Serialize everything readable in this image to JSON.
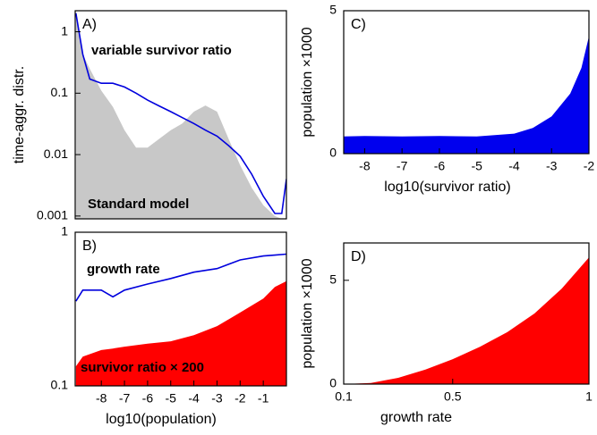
{
  "chart_data": [
    {
      "type": "area",
      "label": "A)",
      "ylabel": "time-aggr. distr.",
      "log_y": true,
      "xlim": [
        -9.13,
        0
      ],
      "ylim": [
        0.0009,
        2.2
      ],
      "yticks": [
        1,
        0.1,
        0.01,
        0.001
      ],
      "x": [
        -9.1,
        -8.8,
        -8.5,
        -8,
        -7.5,
        -7,
        -6.5,
        -6,
        -5.5,
        -5,
        -4.5,
        -4,
        -3.5,
        -3,
        -2.5,
        -2,
        -1.5,
        -1,
        -0.5,
        -0.2,
        0
      ],
      "series": [
        {
          "name": "Standard model",
          "type": "area",
          "color": "#c8c8c8",
          "values": [
            2,
            0.43,
            0.25,
            0.11,
            0.06,
            0.025,
            0.013,
            0.013,
            0.018,
            0.025,
            0.032,
            0.05,
            0.063,
            0.05,
            0.018,
            0.0067,
            0.0029,
            0.0015,
            0.001,
            0.0009,
            0.0009
          ]
        },
        {
          "name": "variable survivor ratio",
          "type": "line",
          "color": "#0000dd",
          "values": [
            2,
            0.43,
            0.17,
            0.145,
            0.145,
            0.126,
            0.1,
            0.077,
            0.062,
            0.05,
            0.04,
            0.032,
            0.025,
            0.02,
            0.014,
            0.0094,
            0.0048,
            0.0021,
            0.0011,
            0.0011,
            0.004
          ]
        }
      ]
    },
    {
      "type": "area",
      "label": "B)",
      "xlabel": "log10(population)",
      "log_y": true,
      "xlim": [
        -9.13,
        0
      ],
      "ylim": [
        0.1,
        1
      ],
      "yticks": [
        1,
        0.1
      ],
      "xticks": [
        -8,
        -7,
        -6,
        -5,
        -4,
        -3,
        -2,
        -1
      ],
      "x": [
        -9.1,
        -8.8,
        -8,
        -7.5,
        -7,
        -6,
        -5,
        -4,
        -3,
        -2,
        -1,
        -0.5,
        0
      ],
      "series": [
        {
          "name": "survivor ratio × 200",
          "type": "area",
          "color": "#ff0000",
          "values": [
            0.134,
            0.155,
            0.171,
            0.175,
            0.18,
            0.188,
            0.195,
            0.214,
            0.245,
            0.3,
            0.37,
            0.44,
            0.48
          ]
        },
        {
          "name": "growth rate",
          "type": "line",
          "color": "#0000dd",
          "values": [
            0.356,
            0.42,
            0.42,
            0.38,
            0.42,
            0.46,
            0.5,
            0.55,
            0.58,
            0.66,
            0.7,
            0.71,
            0.72
          ]
        }
      ]
    },
    {
      "type": "area",
      "label": "C)",
      "xlabel": "log10(survivor ratio)",
      "ylabel": "population ×1000",
      "xlim": [
        -8.56,
        -2
      ],
      "ylim": [
        0,
        5
      ],
      "yticks": [
        5,
        0
      ],
      "xticks": [
        -8,
        -7,
        -6,
        -5,
        -4,
        -3,
        -2
      ],
      "x": [
        -8.56,
        -8,
        -7,
        -6,
        -5,
        -4,
        -3.5,
        -3,
        -2.5,
        -2.2,
        -2
      ],
      "series": [
        {
          "type": "area",
          "color": "#0000ee",
          "values": [
            0.6,
            0.62,
            0.6,
            0.62,
            0.6,
            0.7,
            0.9,
            1.3,
            2.1,
            3,
            4.1
          ]
        }
      ]
    },
    {
      "type": "area",
      "label": "D)",
      "xlabel": "growth rate",
      "ylabel": "population ×1000",
      "xlim": [
        0.1,
        1
      ],
      "ylim": [
        0,
        6.8
      ],
      "yticks": [
        5,
        0
      ],
      "xticks": [
        0.1,
        0.5,
        1
      ],
      "x": [
        0.1,
        0.2,
        0.3,
        0.4,
        0.5,
        0.6,
        0.7,
        0.8,
        0.9,
        1
      ],
      "series": [
        {
          "type": "area",
          "color": "#ff0000",
          "values": [
            0,
            0.05,
            0.3,
            0.7,
            1.2,
            1.8,
            2.5,
            3.4,
            4.6,
            6.1
          ]
        }
      ]
    }
  ]
}
